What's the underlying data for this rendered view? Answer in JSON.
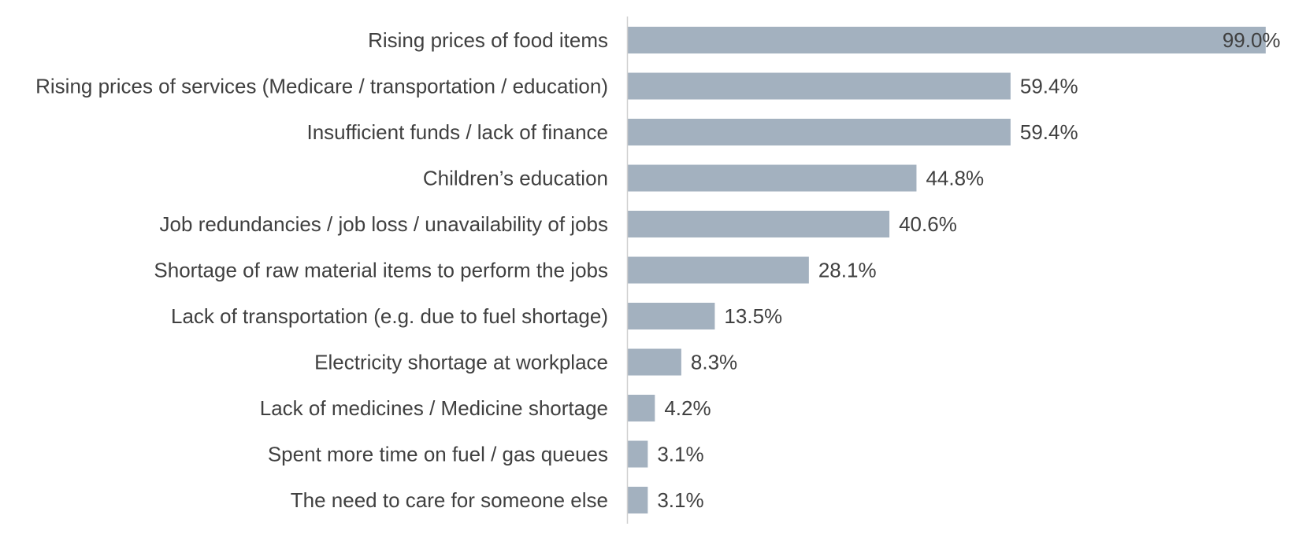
{
  "chart_data": {
    "type": "bar",
    "orientation": "horizontal",
    "title": "",
    "xlabel": "",
    "ylabel": "",
    "xlim": [
      0,
      100
    ],
    "grid": false,
    "legend": "none",
    "bar_color": "#a3b1bf",
    "text_color": "#404040",
    "axis_color": "#d0d0d0",
    "value_suffix": "%",
    "categories": [
      "Rising prices of food items",
      "Rising prices of services (Medicare / transportation / education)",
      "Insufficient funds / lack of finance",
      "Children’s education",
      "Job redundancies / job loss / unavailability of jobs",
      "Shortage of raw material items to perform the jobs",
      "Lack of transportation (e.g. due to fuel shortage)",
      "Electricity shortage at workplace",
      "Lack of medicines / Medicine shortage",
      "Spent more time on fuel / gas queues",
      "The need to care for someone else"
    ],
    "values": [
      99.0,
      59.4,
      59.4,
      44.8,
      40.6,
      28.1,
      13.5,
      8.3,
      4.2,
      3.1,
      3.1
    ],
    "value_labels": [
      "99.0%",
      "59.4%",
      "59.4%",
      "44.8%",
      "40.6%",
      "28.1%",
      "13.5%",
      "8.3%",
      "4.2%",
      "3.1%",
      "3.1%"
    ]
  }
}
